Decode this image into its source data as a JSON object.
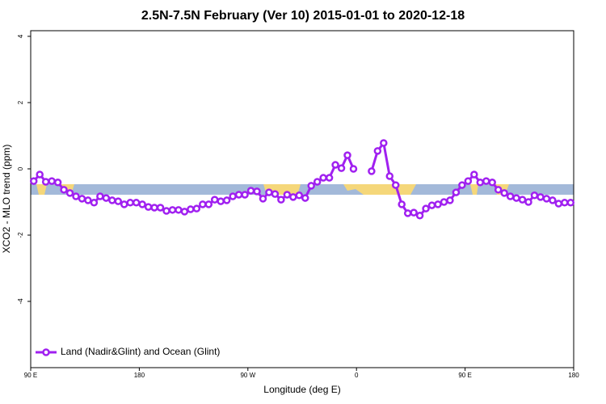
{
  "chart_data": {
    "type": "line",
    "title": "2.5N-7.5N February (Ver 10)   2015-01-01 to 2020-12-18",
    "x_label": "Longitude (deg E)",
    "y_label": "XCO2 - MLO trend (ppm)",
    "x": [
      92.5,
      97.5,
      102.5,
      107.5,
      112.5,
      117.5,
      122.5,
      127.5,
      132.5,
      137.5,
      142.5,
      147.5,
      152.5,
      157.5,
      162.5,
      167.5,
      172.5,
      177.5,
      182.5,
      187.5,
      192.5,
      197.5,
      202.5,
      207.5,
      212.5,
      217.5,
      222.5,
      227.5,
      232.5,
      237.5,
      242.5,
      247.5,
      252.5,
      257.5,
      262.5,
      267.5,
      272.5,
      277.5,
      282.5,
      287.5,
      292.5,
      297.5,
      302.5,
      307.5,
      312.5,
      317.5,
      322.5,
      327.5,
      332.5,
      337.5,
      342.5,
      347.5,
      352.5,
      357.5,
      362.5,
      367.5,
      372.5,
      377.5,
      382.5,
      387.5,
      392.5,
      397.5,
      402.5,
      407.5,
      412.5,
      417.5,
      422.5,
      427.5,
      432.5,
      437.5,
      442.5,
      447.5,
      452.5,
      457.5,
      462.5,
      467.5,
      472.5,
      477.5,
      482.5,
      487.5,
      492.5,
      497.5,
      502.5,
      507.5,
      512.5,
      517.5,
      522.5,
      527.5,
      532.5,
      537.5
    ],
    "series": [
      {
        "name": "Land (Nadir&Glint) and Ocean (Glint)",
        "color": "#a020f0",
        "values": [
          -0.37,
          -0.17,
          -0.39,
          -0.37,
          -0.41,
          -0.63,
          -0.73,
          -0.83,
          -0.9,
          -0.95,
          -1.02,
          -0.83,
          -0.88,
          -0.95,
          -0.98,
          -1.07,
          -1.02,
          -1.02,
          -1.07,
          -1.15,
          -1.17,
          -1.17,
          -1.27,
          -1.24,
          -1.24,
          -1.29,
          -1.22,
          -1.2,
          -1.07,
          -1.07,
          -0.93,
          -0.98,
          -0.95,
          -0.83,
          -0.78,
          -0.78,
          -0.66,
          -0.68,
          -0.9,
          -0.71,
          -0.76,
          -0.93,
          -0.78,
          -0.85,
          -0.8,
          -0.88,
          -0.51,
          -0.39,
          -0.27,
          -0.27,
          0.12,
          0.02,
          0.41,
          0,
          null,
          null,
          -0.07,
          0.54,
          0.78,
          -0.22,
          -0.49,
          -1.07,
          -1.34,
          -1.32,
          -1.41,
          -1.2,
          -1.1,
          -1.07,
          -1.0,
          -0.95,
          -0.71,
          -0.49,
          -0.37,
          -0.17,
          -0.41,
          -0.37,
          -0.41,
          -0.63,
          -0.73,
          -0.83,
          -0.88,
          -0.93,
          -1.0,
          -0.8,
          -0.85,
          -0.9,
          -0.95,
          -1.05,
          -1.02,
          -1.02
        ]
      }
    ],
    "xlim": [
      90,
      540
    ],
    "xticks": [
      {
        "value": 90,
        "label": "90 E"
      },
      180,
      {
        "value": 270,
        "label": "90 W"
      },
      {
        "value": 360,
        "label": "0"
      },
      {
        "value": 450,
        "label": "90 E"
      },
      {
        "value": 540,
        "label": "180"
      }
    ],
    "ylim": [
      -6,
      4.17
    ],
    "yticks": [
      -4,
      -2,
      0,
      2,
      4
    ],
    "legend": "bottomleft"
  }
}
